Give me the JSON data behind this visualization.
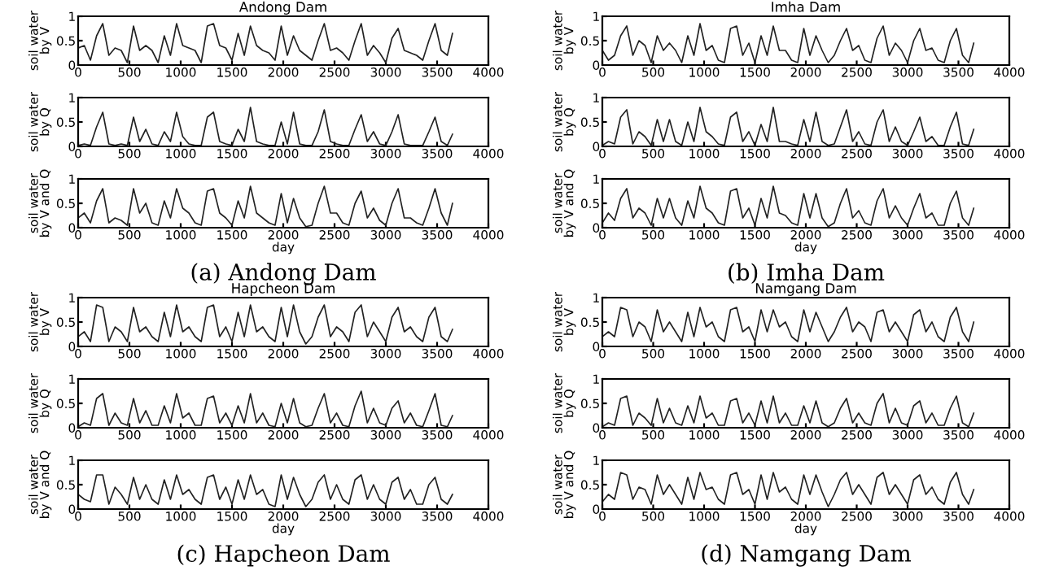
{
  "chart_data": [
    {
      "type": "line",
      "title": "Andong Dam",
      "ylabel": "soil water\nby V",
      "color": "#222222",
      "xlim": [
        0,
        4000
      ],
      "ylim": [
        0,
        1
      ],
      "xticks": [
        0,
        500,
        1000,
        1500,
        2000,
        2500,
        3000,
        3500,
        4000
      ],
      "yticks": [
        0,
        0.5,
        1
      ],
      "x": [
        0,
        60,
        120,
        180,
        240,
        300,
        360,
        420,
        480,
        540,
        600,
        660,
        720,
        780,
        840,
        900,
        960,
        1020,
        1080,
        1140,
        1200,
        1260,
        1320,
        1380,
        1440,
        1500,
        1560,
        1620,
        1680,
        1740,
        1800,
        1860,
        1920,
        1980,
        2040,
        2100,
        2160,
        2220,
        2280,
        2340,
        2400,
        2460,
        2520,
        2580,
        2640,
        2700,
        2760,
        2820,
        2880,
        2940,
        3000,
        3060,
        3120,
        3180,
        3240,
        3300,
        3360,
        3420,
        3480,
        3540,
        3600,
        3650
      ],
      "values": [
        0.35,
        0.4,
        0.1,
        0.6,
        0.85,
        0.2,
        0.35,
        0.3,
        0.05,
        0.8,
        0.3,
        0.4,
        0.3,
        0.05,
        0.6,
        0.2,
        0.85,
        0.4,
        0.35,
        0.3,
        0.05,
        0.8,
        0.85,
        0.4,
        0.35,
        0.1,
        0.65,
        0.2,
        0.8,
        0.4,
        0.3,
        0.25,
        0.1,
        0.8,
        0.2,
        0.6,
        0.3,
        0.2,
        0.1,
        0.5,
        0.85,
        0.3,
        0.35,
        0.25,
        0.1,
        0.5,
        0.85,
        0.2,
        0.4,
        0.25,
        0.05,
        0.55,
        0.75,
        0.3,
        0.25,
        0.2,
        0.1,
        0.5,
        0.85,
        0.3,
        0.2,
        0.65
      ]
    },
    {
      "type": "line",
      "ylabel": "soil water\nby Q",
      "color": "#222222",
      "xlim": [
        0,
        4000
      ],
      "ylim": [
        0,
        1
      ],
      "xticks": [
        0,
        500,
        1000,
        1500,
        2000,
        2500,
        3000,
        3500,
        4000
      ],
      "yticks": [
        0,
        0.5,
        1
      ],
      "x": [
        0,
        60,
        120,
        180,
        240,
        300,
        360,
        420,
        480,
        540,
        600,
        660,
        720,
        780,
        840,
        900,
        960,
        1020,
        1080,
        1140,
        1200,
        1260,
        1320,
        1380,
        1440,
        1500,
        1560,
        1620,
        1680,
        1740,
        1800,
        1860,
        1920,
        1980,
        2040,
        2100,
        2160,
        2220,
        2280,
        2340,
        2400,
        2460,
        2520,
        2580,
        2640,
        2700,
        2760,
        2820,
        2880,
        2940,
        3000,
        3060,
        3120,
        3180,
        3240,
        3300,
        3360,
        3420,
        3480,
        3540,
        3600,
        3650
      ],
      "values": [
        0.02,
        0.05,
        0.02,
        0.4,
        0.7,
        0.05,
        0.02,
        0.05,
        0.02,
        0.6,
        0.1,
        0.35,
        0.05,
        0.02,
        0.3,
        0.1,
        0.7,
        0.2,
        0.05,
        0.02,
        0.02,
        0.6,
        0.7,
        0.1,
        0.05,
        0.02,
        0.35,
        0.1,
        0.8,
        0.1,
        0.05,
        0.02,
        0.02,
        0.5,
        0.05,
        0.7,
        0.05,
        0.02,
        0.02,
        0.3,
        0.75,
        0.1,
        0.05,
        0.02,
        0.02,
        0.35,
        0.65,
        0.1,
        0.3,
        0.05,
        0.02,
        0.3,
        0.65,
        0.05,
        0.02,
        0.02,
        0.02,
        0.3,
        0.6,
        0.1,
        0.02,
        0.25
      ]
    },
    {
      "type": "line",
      "ylabel": "soil water\nby V and Q",
      "xlabel": "day",
      "annotations": [
        "(a) Andong Dam"
      ],
      "color": "#222222",
      "xlim": [
        0,
        4000
      ],
      "ylim": [
        0,
        1
      ],
      "xticks": [
        0,
        500,
        1000,
        1500,
        2000,
        2500,
        3000,
        3500,
        4000
      ],
      "yticks": [
        0,
        0.5,
        1
      ],
      "x": [
        0,
        60,
        120,
        180,
        240,
        300,
        360,
        420,
        480,
        540,
        600,
        660,
        720,
        780,
        840,
        900,
        960,
        1020,
        1080,
        1140,
        1200,
        1260,
        1320,
        1380,
        1440,
        1500,
        1560,
        1620,
        1680,
        1740,
        1800,
        1860,
        1920,
        1980,
        2040,
        2100,
        2160,
        2220,
        2280,
        2340,
        2400,
        2460,
        2520,
        2580,
        2640,
        2700,
        2760,
        2820,
        2880,
        2940,
        3000,
        3060,
        3120,
        3180,
        3240,
        3300,
        3360,
        3420,
        3480,
        3540,
        3600,
        3650
      ],
      "values": [
        0.2,
        0.3,
        0.1,
        0.55,
        0.8,
        0.1,
        0.2,
        0.15,
        0.05,
        0.8,
        0.3,
        0.5,
        0.1,
        0.05,
        0.55,
        0.2,
        0.8,
        0.4,
        0.3,
        0.1,
        0.05,
        0.75,
        0.8,
        0.3,
        0.2,
        0.05,
        0.55,
        0.2,
        0.85,
        0.3,
        0.2,
        0.1,
        0.05,
        0.7,
        0.1,
        0.6,
        0.2,
        0.02,
        0.05,
        0.5,
        0.85,
        0.3,
        0.3,
        0.1,
        0.05,
        0.5,
        0.75,
        0.2,
        0.4,
        0.15,
        0.05,
        0.5,
        0.8,
        0.2,
        0.2,
        0.1,
        0.05,
        0.4,
        0.8,
        0.3,
        0.05,
        0.5
      ]
    },
    {
      "type": "line",
      "title": "Imha Dam",
      "ylabel": "soil water\nby V",
      "color": "#222222",
      "xlim": [
        0,
        4000
      ],
      "ylim": [
        0,
        1
      ],
      "xticks": [
        0,
        500,
        1000,
        1500,
        2000,
        2500,
        3000,
        3500,
        4000
      ],
      "yticks": [
        0,
        0.5,
        1
      ],
      "x": [
        0,
        60,
        120,
        180,
        240,
        300,
        360,
        420,
        480,
        540,
        600,
        660,
        720,
        780,
        840,
        900,
        960,
        1020,
        1080,
        1140,
        1200,
        1260,
        1320,
        1380,
        1440,
        1500,
        1560,
        1620,
        1680,
        1740,
        1800,
        1860,
        1920,
        1980,
        2040,
        2100,
        2160,
        2220,
        2280,
        2340,
        2400,
        2460,
        2520,
        2580,
        2640,
        2700,
        2760,
        2820,
        2880,
        2940,
        3000,
        3060,
        3120,
        3180,
        3240,
        3300,
        3360,
        3420,
        3480,
        3540,
        3600,
        3650
      ],
      "values": [
        0.3,
        0.1,
        0.2,
        0.6,
        0.8,
        0.2,
        0.5,
        0.4,
        0.05,
        0.6,
        0.3,
        0.45,
        0.3,
        0.05,
        0.6,
        0.2,
        0.85,
        0.3,
        0.4,
        0.1,
        0.05,
        0.75,
        0.8,
        0.2,
        0.45,
        0.05,
        0.6,
        0.2,
        0.8,
        0.3,
        0.3,
        0.1,
        0.05,
        0.75,
        0.2,
        0.6,
        0.3,
        0.05,
        0.2,
        0.5,
        0.75,
        0.3,
        0.4,
        0.1,
        0.05,
        0.55,
        0.8,
        0.2,
        0.45,
        0.3,
        0.05,
        0.5,
        0.75,
        0.3,
        0.35,
        0.1,
        0.05,
        0.5,
        0.75,
        0.2,
        0.05,
        0.45
      ]
    },
    {
      "type": "line",
      "ylabel": "soil water\nby Q",
      "color": "#222222",
      "xlim": [
        0,
        4000
      ],
      "ylim": [
        0,
        1
      ],
      "xticks": [
        0,
        500,
        1000,
        1500,
        2000,
        2500,
        3000,
        3500,
        4000
      ],
      "yticks": [
        0,
        0.5,
        1
      ],
      "x": [
        0,
        60,
        120,
        180,
        240,
        300,
        360,
        420,
        480,
        540,
        600,
        660,
        720,
        780,
        840,
        900,
        960,
        1020,
        1080,
        1140,
        1200,
        1260,
        1320,
        1380,
        1440,
        1500,
        1560,
        1620,
        1680,
        1740,
        1800,
        1860,
        1920,
        1980,
        2040,
        2100,
        2160,
        2220,
        2280,
        2340,
        2400,
        2460,
        2520,
        2580,
        2640,
        2700,
        2760,
        2820,
        2880,
        2940,
        3000,
        3060,
        3120,
        3180,
        3240,
        3300,
        3360,
        3420,
        3480,
        3540,
        3600,
        3650
      ],
      "values": [
        0.02,
        0.1,
        0.05,
        0.6,
        0.75,
        0.05,
        0.3,
        0.2,
        0.02,
        0.55,
        0.1,
        0.55,
        0.1,
        0.02,
        0.5,
        0.1,
        0.8,
        0.3,
        0.2,
        0.05,
        0.02,
        0.6,
        0.7,
        0.1,
        0.3,
        0.02,
        0.45,
        0.1,
        0.8,
        0.1,
        0.1,
        0.05,
        0.02,
        0.55,
        0.1,
        0.7,
        0.1,
        0.02,
        0.05,
        0.4,
        0.75,
        0.1,
        0.3,
        0.05,
        0.02,
        0.5,
        0.75,
        0.1,
        0.4,
        0.1,
        0.02,
        0.3,
        0.6,
        0.1,
        0.2,
        0.02,
        0.02,
        0.4,
        0.7,
        0.05,
        0.02,
        0.35
      ]
    },
    {
      "type": "line",
      "ylabel": "soil water\nby V and Q",
      "xlabel": "day",
      "annotations": [
        "(b) Imha Dam"
      ],
      "color": "#222222",
      "xlim": [
        0,
        4000
      ],
      "ylim": [
        0,
        1
      ],
      "xticks": [
        0,
        500,
        1000,
        1500,
        2000,
        2500,
        3000,
        3500,
        4000
      ],
      "yticks": [
        0,
        0.5,
        1
      ],
      "x": [
        0,
        60,
        120,
        180,
        240,
        300,
        360,
        420,
        480,
        540,
        600,
        660,
        720,
        780,
        840,
        900,
        960,
        1020,
        1080,
        1140,
        1200,
        1260,
        1320,
        1380,
        1440,
        1500,
        1560,
        1620,
        1680,
        1740,
        1800,
        1860,
        1920,
        1980,
        2040,
        2100,
        2160,
        2220,
        2280,
        2340,
        2400,
        2460,
        2520,
        2580,
        2640,
        2700,
        2760,
        2820,
        2880,
        2940,
        3000,
        3060,
        3120,
        3180,
        3240,
        3300,
        3360,
        3420,
        3480,
        3540,
        3600,
        3650
      ],
      "values": [
        0.1,
        0.3,
        0.15,
        0.6,
        0.8,
        0.2,
        0.4,
        0.3,
        0.05,
        0.6,
        0.2,
        0.6,
        0.2,
        0.05,
        0.55,
        0.2,
        0.85,
        0.4,
        0.3,
        0.1,
        0.05,
        0.75,
        0.8,
        0.2,
        0.4,
        0.05,
        0.6,
        0.2,
        0.85,
        0.3,
        0.25,
        0.1,
        0.05,
        0.7,
        0.2,
        0.7,
        0.2,
        0.02,
        0.1,
        0.5,
        0.8,
        0.2,
        0.35,
        0.1,
        0.05,
        0.55,
        0.8,
        0.2,
        0.45,
        0.2,
        0.05,
        0.4,
        0.7,
        0.2,
        0.3,
        0.05,
        0.05,
        0.5,
        0.75,
        0.2,
        0.05,
        0.4
      ]
    },
    {
      "type": "line",
      "title": "Hapcheon Dam",
      "ylabel": "soil water\nby V",
      "color": "#222222",
      "xlim": [
        0,
        4000
      ],
      "ylim": [
        0,
        1
      ],
      "xticks": [
        0,
        500,
        1000,
        1500,
        2000,
        2500,
        3000,
        3500,
        4000
      ],
      "yticks": [
        0,
        0.5,
        1
      ],
      "x": [
        0,
        60,
        120,
        180,
        240,
        300,
        360,
        420,
        480,
        540,
        600,
        660,
        720,
        780,
        840,
        900,
        960,
        1020,
        1080,
        1140,
        1200,
        1260,
        1320,
        1380,
        1440,
        1500,
        1560,
        1620,
        1680,
        1740,
        1800,
        1860,
        1920,
        1980,
        2040,
        2100,
        2160,
        2220,
        2280,
        2340,
        2400,
        2460,
        2520,
        2580,
        2640,
        2700,
        2760,
        2820,
        2880,
        2940,
        3000,
        3060,
        3120,
        3180,
        3240,
        3300,
        3360,
        3420,
        3480,
        3540,
        3600,
        3650
      ],
      "values": [
        0.2,
        0.3,
        0.1,
        0.85,
        0.8,
        0.1,
        0.4,
        0.3,
        0.1,
        0.8,
        0.3,
        0.4,
        0.2,
        0.1,
        0.7,
        0.2,
        0.85,
        0.3,
        0.4,
        0.2,
        0.1,
        0.8,
        0.85,
        0.2,
        0.4,
        0.1,
        0.7,
        0.2,
        0.85,
        0.3,
        0.4,
        0.2,
        0.1,
        0.8,
        0.2,
        0.85,
        0.3,
        0.05,
        0.2,
        0.6,
        0.85,
        0.2,
        0.4,
        0.3,
        0.1,
        0.7,
        0.85,
        0.2,
        0.5,
        0.3,
        0.1,
        0.6,
        0.8,
        0.3,
        0.4,
        0.2,
        0.1,
        0.6,
        0.8,
        0.2,
        0.1,
        0.35
      ]
    },
    {
      "type": "line",
      "ylabel": "soil water\nby Q",
      "color": "#222222",
      "xlim": [
        0,
        4000
      ],
      "ylim": [
        0,
        1
      ],
      "xticks": [
        0,
        500,
        1000,
        1500,
        2000,
        2500,
        3000,
        3500,
        4000
      ],
      "yticks": [
        0,
        0.5,
        1
      ],
      "x": [
        0,
        60,
        120,
        180,
        240,
        300,
        360,
        420,
        480,
        540,
        600,
        660,
        720,
        780,
        840,
        900,
        960,
        1020,
        1080,
        1140,
        1200,
        1260,
        1320,
        1380,
        1440,
        1500,
        1560,
        1620,
        1680,
        1740,
        1800,
        1860,
        1920,
        1980,
        2040,
        2100,
        2160,
        2220,
        2280,
        2340,
        2400,
        2460,
        2520,
        2580,
        2640,
        2700,
        2760,
        2820,
        2880,
        2940,
        3000,
        3060,
        3120,
        3180,
        3240,
        3300,
        3360,
        3420,
        3480,
        3540,
        3600,
        3650
      ],
      "values": [
        0.02,
        0.1,
        0.05,
        0.6,
        0.7,
        0.05,
        0.3,
        0.1,
        0.05,
        0.6,
        0.1,
        0.35,
        0.05,
        0.05,
        0.45,
        0.1,
        0.7,
        0.2,
        0.3,
        0.05,
        0.05,
        0.6,
        0.65,
        0.1,
        0.3,
        0.05,
        0.45,
        0.1,
        0.7,
        0.1,
        0.3,
        0.05,
        0.02,
        0.5,
        0.1,
        0.6,
        0.1,
        0.02,
        0.05,
        0.4,
        0.7,
        0.1,
        0.3,
        0.05,
        0.02,
        0.45,
        0.75,
        0.1,
        0.4,
        0.1,
        0.05,
        0.4,
        0.55,
        0.1,
        0.3,
        0.05,
        0.02,
        0.35,
        0.7,
        0.05,
        0.02,
        0.25
      ]
    },
    {
      "type": "line",
      "ylabel": "soil water\nby V and Q",
      "xlabel": "day",
      "annotations": [
        "(c) Hapcheon Dam"
      ],
      "color": "#222222",
      "xlim": [
        0,
        4000
      ],
      "ylim": [
        0,
        1
      ],
      "xticks": [
        0,
        500,
        1000,
        1500,
        2000,
        2500,
        3000,
        3500,
        4000
      ],
      "yticks": [
        0,
        0.5,
        1
      ],
      "x": [
        0,
        60,
        120,
        180,
        240,
        300,
        360,
        420,
        480,
        540,
        600,
        660,
        720,
        780,
        840,
        900,
        960,
        1020,
        1080,
        1140,
        1200,
        1260,
        1320,
        1380,
        1440,
        1500,
        1560,
        1620,
        1680,
        1740,
        1800,
        1860,
        1920,
        1980,
        2040,
        2100,
        2160,
        2220,
        2280,
        2340,
        2400,
        2460,
        2520,
        2580,
        2640,
        2700,
        2760,
        2820,
        2880,
        2940,
        3000,
        3060,
        3120,
        3180,
        3240,
        3300,
        3360,
        3420,
        3480,
        3540,
        3600,
        3650
      ],
      "values": [
        0.3,
        0.2,
        0.15,
        0.7,
        0.7,
        0.1,
        0.45,
        0.3,
        0.1,
        0.65,
        0.2,
        0.5,
        0.2,
        0.1,
        0.6,
        0.2,
        0.7,
        0.3,
        0.4,
        0.2,
        0.1,
        0.65,
        0.7,
        0.2,
        0.45,
        0.1,
        0.6,
        0.2,
        0.7,
        0.3,
        0.4,
        0.1,
        0.05,
        0.7,
        0.2,
        0.65,
        0.3,
        0.05,
        0.2,
        0.55,
        0.7,
        0.2,
        0.5,
        0.2,
        0.1,
        0.6,
        0.7,
        0.2,
        0.5,
        0.2,
        0.1,
        0.55,
        0.65,
        0.2,
        0.4,
        0.1,
        0.1,
        0.5,
        0.65,
        0.2,
        0.1,
        0.3
      ]
    },
    {
      "type": "line",
      "title": "Namgang Dam",
      "ylabel": "soil water\nby V",
      "color": "#222222",
      "xlim": [
        0,
        4000
      ],
      "ylim": [
        0,
        1
      ],
      "xticks": [
        0,
        500,
        1000,
        1500,
        2000,
        2500,
        3000,
        3500,
        4000
      ],
      "yticks": [
        0,
        0.5,
        1
      ],
      "x": [
        0,
        60,
        120,
        180,
        240,
        300,
        360,
        420,
        480,
        540,
        600,
        660,
        720,
        780,
        840,
        900,
        960,
        1020,
        1080,
        1140,
        1200,
        1260,
        1320,
        1380,
        1440,
        1500,
        1560,
        1620,
        1680,
        1740,
        1800,
        1860,
        1920,
        1980,
        2040,
        2100,
        2160,
        2220,
        2280,
        2340,
        2400,
        2460,
        2520,
        2580,
        2640,
        2700,
        2760,
        2820,
        2880,
        2940,
        3000,
        3060,
        3120,
        3180,
        3240,
        3300,
        3360,
        3420,
        3480,
        3540,
        3600,
        3650
      ],
      "values": [
        0.2,
        0.3,
        0.2,
        0.8,
        0.75,
        0.2,
        0.5,
        0.4,
        0.1,
        0.75,
        0.3,
        0.5,
        0.3,
        0.1,
        0.7,
        0.2,
        0.8,
        0.4,
        0.5,
        0.2,
        0.1,
        0.75,
        0.8,
        0.3,
        0.4,
        0.1,
        0.75,
        0.3,
        0.75,
        0.4,
        0.5,
        0.2,
        0.1,
        0.75,
        0.3,
        0.7,
        0.4,
        0.1,
        0.3,
        0.6,
        0.8,
        0.3,
        0.5,
        0.4,
        0.1,
        0.7,
        0.75,
        0.3,
        0.5,
        0.3,
        0.1,
        0.65,
        0.75,
        0.3,
        0.5,
        0.2,
        0.1,
        0.6,
        0.8,
        0.3,
        0.1,
        0.5
      ]
    },
    {
      "type": "line",
      "ylabel": "soil water\nby Q",
      "color": "#222222",
      "xlim": [
        0,
        4000
      ],
      "ylim": [
        0,
        1
      ],
      "xticks": [
        0,
        500,
        1000,
        1500,
        2000,
        2500,
        3000,
        3500,
        4000
      ],
      "yticks": [
        0,
        0.5,
        1
      ],
      "x": [
        0,
        60,
        120,
        180,
        240,
        300,
        360,
        420,
        480,
        540,
        600,
        660,
        720,
        780,
        840,
        900,
        960,
        1020,
        1080,
        1140,
        1200,
        1260,
        1320,
        1380,
        1440,
        1500,
        1560,
        1620,
        1680,
        1740,
        1800,
        1860,
        1920,
        1980,
        2040,
        2100,
        2160,
        2220,
        2280,
        2340,
        2400,
        2460,
        2520,
        2580,
        2640,
        2700,
        2760,
        2820,
        2880,
        2940,
        3000,
        3060,
        3120,
        3180,
        3240,
        3300,
        3360,
        3420,
        3480,
        3540,
        3600,
        3650
      ],
      "values": [
        0.02,
        0.1,
        0.05,
        0.6,
        0.65,
        0.05,
        0.3,
        0.2,
        0.05,
        0.6,
        0.1,
        0.4,
        0.1,
        0.05,
        0.45,
        0.1,
        0.65,
        0.2,
        0.3,
        0.05,
        0.05,
        0.55,
        0.6,
        0.1,
        0.3,
        0.05,
        0.55,
        0.1,
        0.65,
        0.1,
        0.3,
        0.05,
        0.05,
        0.45,
        0.1,
        0.55,
        0.1,
        0.02,
        0.1,
        0.4,
        0.6,
        0.1,
        0.3,
        0.1,
        0.05,
        0.5,
        0.7,
        0.1,
        0.4,
        0.1,
        0.05,
        0.45,
        0.55,
        0.1,
        0.3,
        0.05,
        0.05,
        0.4,
        0.65,
        0.1,
        0.02,
        0.3
      ]
    },
    {
      "type": "line",
      "ylabel": "soil water\nby V and Q",
      "xlabel": "day",
      "annotations": [
        "(d) Namgang Dam"
      ],
      "color": "#222222",
      "xlim": [
        0,
        4000
      ],
      "ylim": [
        0,
        1
      ],
      "xticks": [
        0,
        500,
        1000,
        1500,
        2000,
        2500,
        3000,
        3500,
        4000
      ],
      "yticks": [
        0,
        0.5,
        1
      ],
      "x": [
        0,
        60,
        120,
        180,
        240,
        300,
        360,
        420,
        480,
        540,
        600,
        660,
        720,
        780,
        840,
        900,
        960,
        1020,
        1080,
        1140,
        1200,
        1260,
        1320,
        1380,
        1440,
        1500,
        1560,
        1620,
        1680,
        1740,
        1800,
        1860,
        1920,
        1980,
        2040,
        2100,
        2160,
        2220,
        2280,
        2340,
        2400,
        2460,
        2520,
        2580,
        2640,
        2700,
        2760,
        2820,
        2880,
        2940,
        3000,
        3060,
        3120,
        3180,
        3240,
        3300,
        3360,
        3420,
        3480,
        3540,
        3600,
        3650
      ],
      "values": [
        0.15,
        0.3,
        0.2,
        0.75,
        0.7,
        0.2,
        0.45,
        0.4,
        0.1,
        0.7,
        0.3,
        0.5,
        0.3,
        0.1,
        0.65,
        0.2,
        0.75,
        0.4,
        0.45,
        0.2,
        0.1,
        0.7,
        0.75,
        0.3,
        0.4,
        0.1,
        0.7,
        0.2,
        0.75,
        0.35,
        0.45,
        0.2,
        0.1,
        0.7,
        0.3,
        0.7,
        0.35,
        0.05,
        0.3,
        0.6,
        0.75,
        0.3,
        0.5,
        0.3,
        0.1,
        0.65,
        0.75,
        0.3,
        0.5,
        0.3,
        0.1,
        0.6,
        0.7,
        0.3,
        0.45,
        0.2,
        0.1,
        0.55,
        0.75,
        0.3,
        0.1,
        0.4
      ]
    }
  ]
}
